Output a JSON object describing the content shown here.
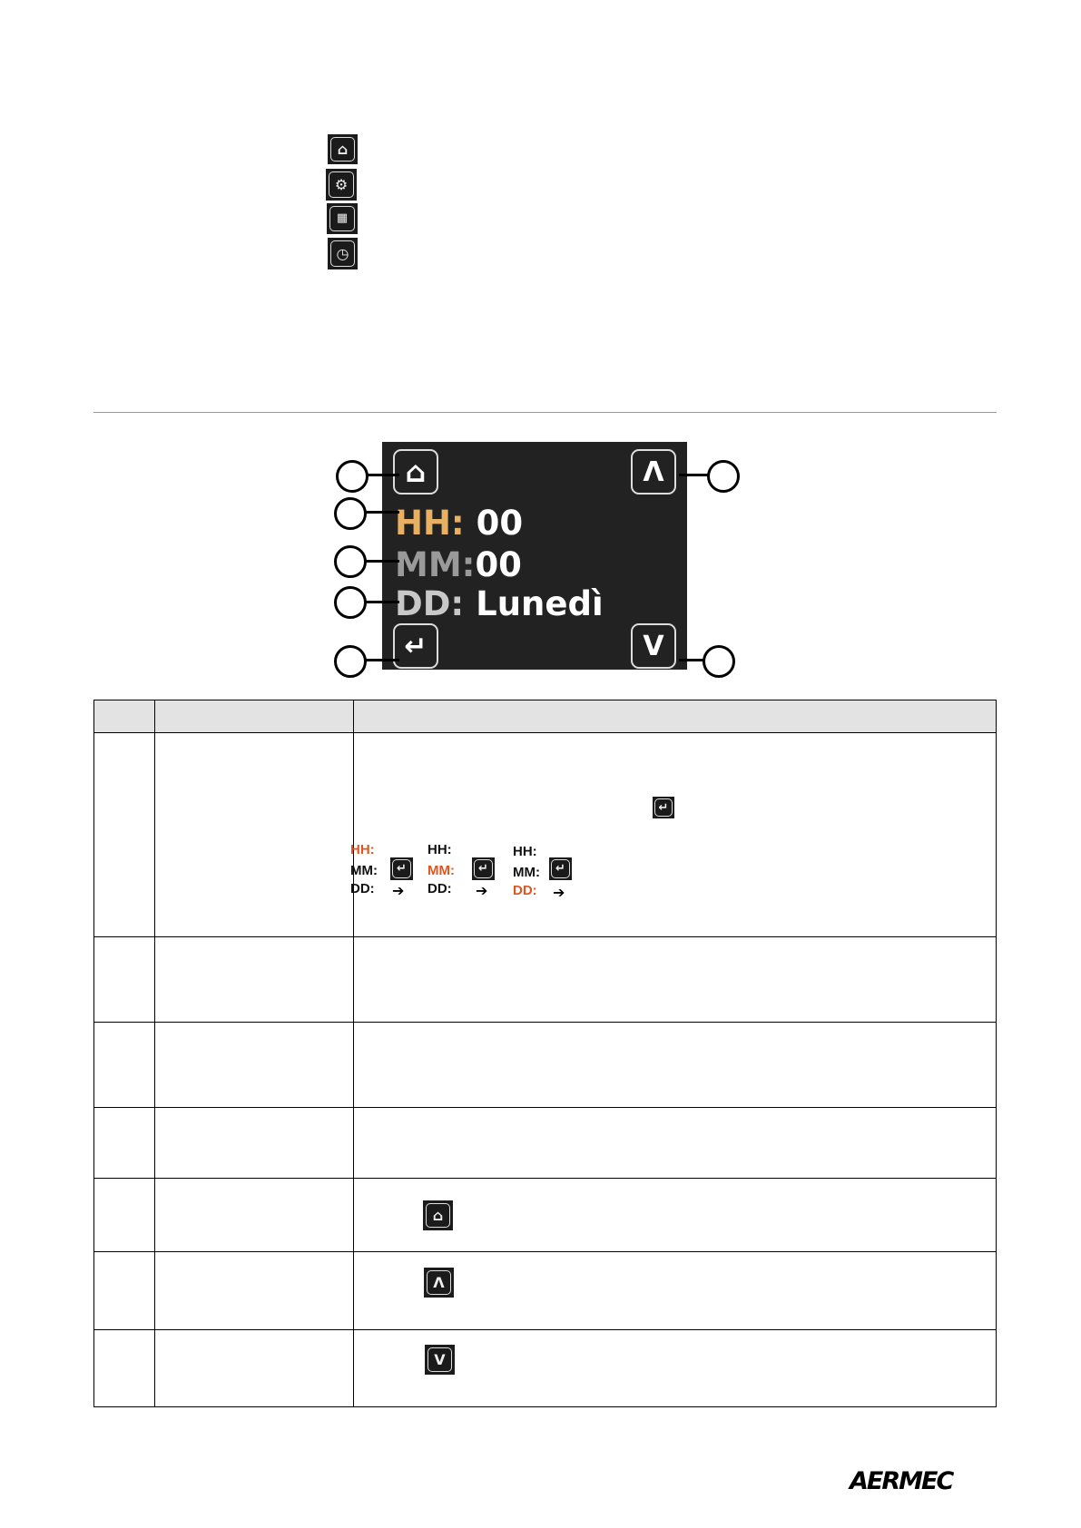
{
  "top_icons": [
    "home-icon",
    "settings-icon",
    "calendar-icon",
    "clock-icon"
  ],
  "screen": {
    "hh_label": "HH:",
    "hh_value": "00",
    "mm_label": "MM:",
    "mm_value": "00",
    "dd_label": "DD:",
    "dd_value": "Lunedì",
    "up_symbol": "Λ",
    "down_symbol": "V",
    "enter_symbol": "↵",
    "colors": {
      "background": "#222222",
      "hh": "#e8b063",
      "mm": "#9a9a9a",
      "dd": "#c8c8c8"
    }
  },
  "sequence": [
    {
      "hh": "HH:",
      "mm": "MM:",
      "dd": "DD:",
      "active": "hh"
    },
    {
      "hh": "HH:",
      "mm": "MM:",
      "dd": "DD:",
      "active": "mm"
    },
    {
      "hh": "HH:",
      "mm": "MM:",
      "dd": "DD:",
      "active": "dd"
    }
  ],
  "arrow": "➔",
  "highlight_color": "#e0561f",
  "logo": "AERMEC"
}
